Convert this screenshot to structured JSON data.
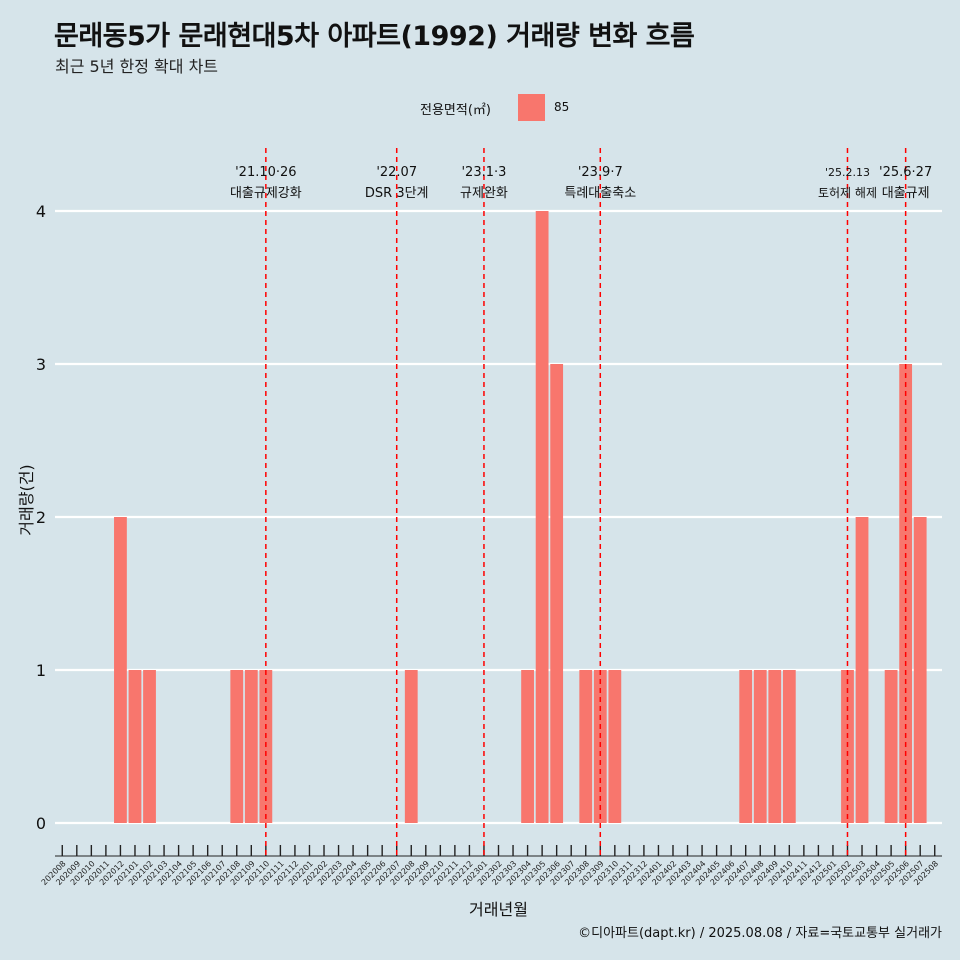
{
  "title": "문래동5가 문래현대5차 아파트(1992) 거래량 변화 흐름",
  "subtitle": "최근 5년 한정 확대 차트",
  "legend": {
    "title": "전용면적(㎡)",
    "label": "85",
    "color": "#F8766D"
  },
  "caption": "©디아파트(dapt.kr) / 2025.08.08 / 자료=국토교통부 실거래가",
  "colors": {
    "background": "#d6e4ea",
    "bar": "#F8766D",
    "event_line": "#ff0000",
    "grid": "#ffffff"
  },
  "chart_data": {
    "type": "bar",
    "xlabel": "거래년월",
    "ylabel": "거래량(건)",
    "ylim": [
      0,
      4
    ],
    "yticks": [
      0,
      1,
      2,
      3,
      4
    ],
    "grid": "horizontal major lines only",
    "legend_position": "top",
    "categories": [
      "202008",
      "202009",
      "202010",
      "202011",
      "202012",
      "202101",
      "202102",
      "202103",
      "202104",
      "202105",
      "202106",
      "202107",
      "202108",
      "202109",
      "202110",
      "202111",
      "202112",
      "202201",
      "202202",
      "202203",
      "202204",
      "202205",
      "202206",
      "202207",
      "202208",
      "202209",
      "202210",
      "202211",
      "202212",
      "202301",
      "202302",
      "202303",
      "202304",
      "202305",
      "202306",
      "202307",
      "202308",
      "202309",
      "202310",
      "202311",
      "202312",
      "202401",
      "202402",
      "202403",
      "202404",
      "202405",
      "202406",
      "202407",
      "202408",
      "202409",
      "202410",
      "202411",
      "202412",
      "202501",
      "202502",
      "202503",
      "202504",
      "202505",
      "202506",
      "202507",
      "202508"
    ],
    "series": [
      {
        "name": "85",
        "values": [
          0,
          0,
          0,
          0,
          2,
          1,
          1,
          0,
          0,
          0,
          0,
          0,
          1,
          1,
          1,
          0,
          0,
          0,
          0,
          0,
          0,
          0,
          0,
          0,
          1,
          0,
          0,
          0,
          0,
          0,
          0,
          0,
          1,
          4,
          3,
          0,
          1,
          1,
          1,
          0,
          0,
          0,
          0,
          0,
          0,
          0,
          0,
          1,
          1,
          1,
          1,
          0,
          0,
          0,
          1,
          2,
          0,
          1,
          3,
          2,
          0
        ]
      }
    ],
    "annotations": [
      {
        "at": "202110",
        "date": "'21.10·26",
        "label": "대출규제강화"
      },
      {
        "at": "202207",
        "date": "'22.07",
        "label": "DSR 3단계"
      },
      {
        "at": "202301",
        "date": "'23.1·3",
        "label": "규제완화"
      },
      {
        "at": "202309",
        "date": "'23.9·7",
        "label": "특례대출축소"
      },
      {
        "at": "202502",
        "date": "'25.2.13",
        "label": "토허제 해제"
      },
      {
        "at": "202506",
        "date": "'25.6·27",
        "label": "대출규제"
      }
    ]
  }
}
